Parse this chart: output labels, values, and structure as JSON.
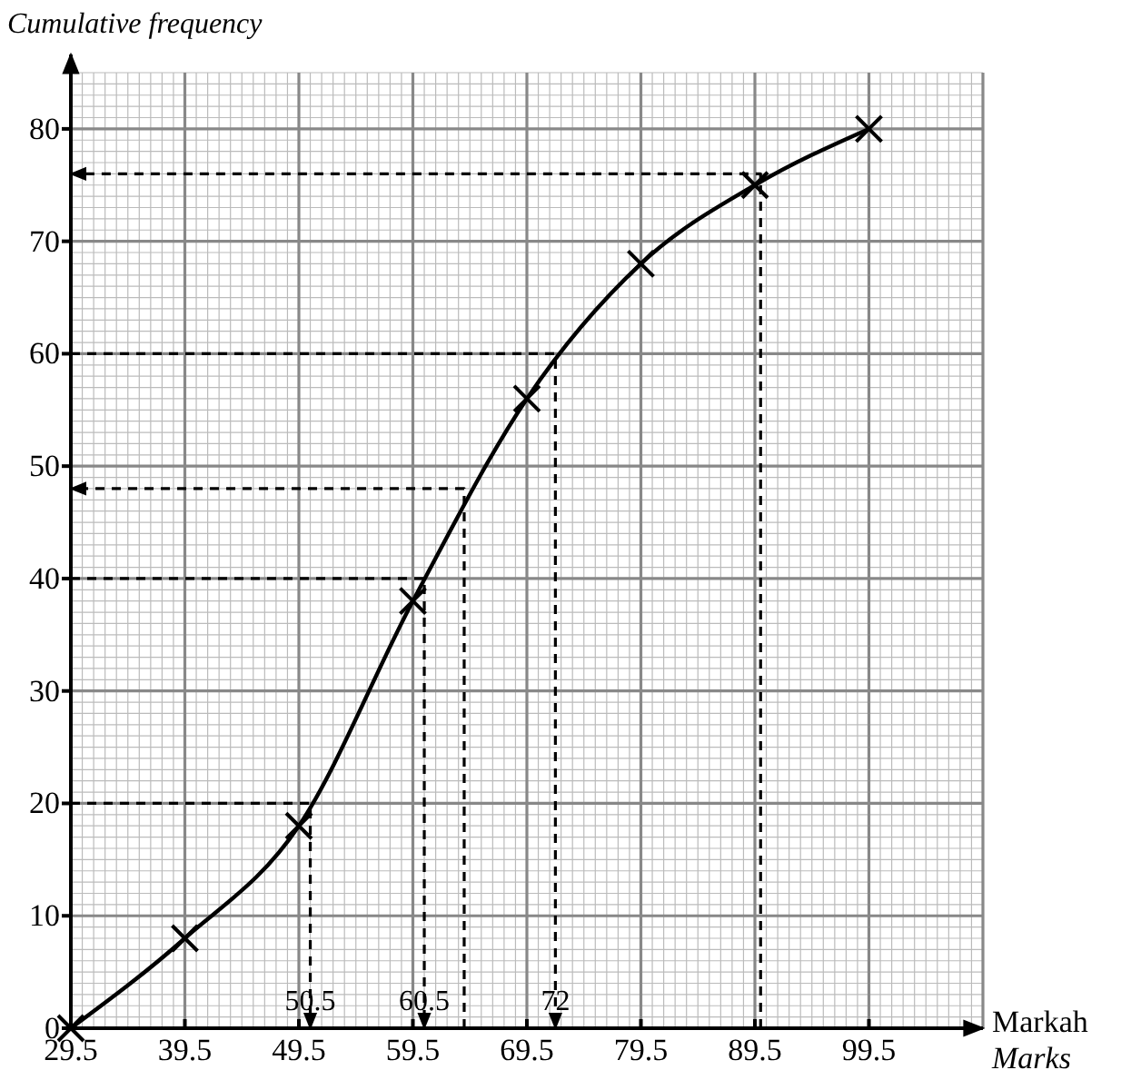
{
  "chart_data": {
    "type": "line",
    "ylabel": "Cumulative frequency",
    "xlabel": "Markah\nMarks",
    "x": [
      29.5,
      39.5,
      49.5,
      59.5,
      69.5,
      79.5,
      89.5,
      99.5
    ],
    "series": [
      {
        "color": "#000000",
        "values": [
          0,
          8,
          18,
          38,
          56,
          68,
          75,
          80
        ],
        "marker": "cross",
        "line_style": "solid"
      },
      {
        "type": "line",
        "color": "#000000",
        "x": [
          29.5,
          50.5,
          50.5
        ],
        "values": [
          20,
          20,
          0
        ],
        "marker": "none",
        "line_style": "dashed"
      },
      {
        "type": "line",
        "color": "#000000",
        "x": [
          29.5,
          60.5,
          60.5
        ],
        "values": [
          40,
          40,
          0
        ],
        "marker": "none",
        "line_style": "dashed"
      },
      {
        "type": "line",
        "color": "#000000",
        "x": [
          64,
          64,
          29.5
        ],
        "values": [
          0,
          48,
          48
        ],
        "marker": "none",
        "line_style": "dashed"
      },
      {
        "type": "line",
        "color": "#000000",
        "x": [
          29.5,
          72,
          72
        ],
        "values": [
          60,
          60,
          0
        ],
        "marker": "none",
        "line_style": "dashed"
      },
      {
        "type": "line",
        "color": "#000000",
        "x": [
          90,
          90,
          29.5
        ],
        "values": [
          0,
          76,
          76
        ],
        "marker": "none",
        "line_style": "dashed"
      }
    ],
    "annotations": [
      {
        "text": "50.5",
        "x": 50.5,
        "y": 0
      },
      {
        "text": "60.5",
        "x": 60.5,
        "y": 0
      },
      {
        "text": "72",
        "x": 72,
        "y": 0
      }
    ],
    "xlim": [
      29.5,
      109.5
    ],
    "xticks": [
      29.5,
      39.5,
      49.5,
      59.5,
      69.5,
      79.5,
      89.5,
      99.5
    ],
    "ylim": [
      0,
      85
    ],
    "yticks": [
      0,
      10,
      20,
      30,
      40,
      50,
      60,
      70,
      80
    ],
    "grid": true
  }
}
